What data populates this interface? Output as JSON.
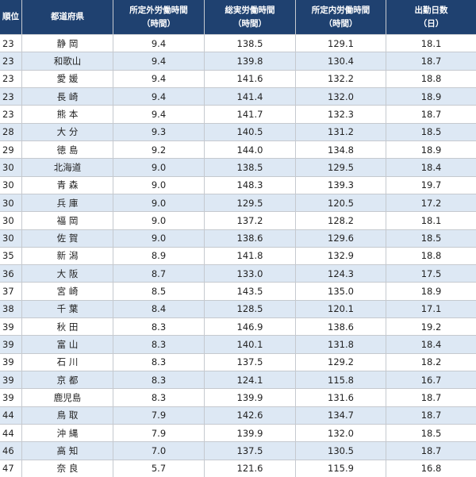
{
  "table": {
    "header": [
      [
        "順位"
      ],
      [
        "都道府県"
      ],
      [
        "所定外労働時間",
        "（時間）"
      ],
      [
        "総実労働時間",
        "（時間）"
      ],
      [
        "所定内労働時間",
        "（時間）"
      ],
      [
        "出勤日数",
        "（日）"
      ]
    ],
    "rows": [
      [
        "23",
        "静 岡",
        "9.4",
        "138.5",
        "129.1",
        "18.1"
      ],
      [
        "23",
        "和歌山",
        "9.4",
        "139.8",
        "130.4",
        "18.7"
      ],
      [
        "23",
        "愛 媛",
        "9.4",
        "141.6",
        "132.2",
        "18.8"
      ],
      [
        "23",
        "長 崎",
        "9.4",
        "141.4",
        "132.0",
        "18.9"
      ],
      [
        "23",
        "熊 本",
        "9.4",
        "141.7",
        "132.3",
        "18.7"
      ],
      [
        "28",
        "大 分",
        "9.3",
        "140.5",
        "131.2",
        "18.5"
      ],
      [
        "29",
        "徳 島",
        "9.2",
        "144.0",
        "134.8",
        "18.9"
      ],
      [
        "30",
        "北海道",
        "9.0",
        "138.5",
        "129.5",
        "18.4"
      ],
      [
        "30",
        "青 森",
        "9.0",
        "148.3",
        "139.3",
        "19.7"
      ],
      [
        "30",
        "兵 庫",
        "9.0",
        "129.5",
        "120.5",
        "17.2"
      ],
      [
        "30",
        "福 岡",
        "9.0",
        "137.2",
        "128.2",
        "18.1"
      ],
      [
        "30",
        "佐 賀",
        "9.0",
        "138.6",
        "129.6",
        "18.5"
      ],
      [
        "35",
        "新 潟",
        "8.9",
        "141.8",
        "132.9",
        "18.8"
      ],
      [
        "36",
        "大 阪",
        "8.7",
        "133.0",
        "124.3",
        "17.5"
      ],
      [
        "37",
        "宮 崎",
        "8.5",
        "143.5",
        "135.0",
        "18.9"
      ],
      [
        "38",
        "千 葉",
        "8.4",
        "128.5",
        "120.1",
        "17.1"
      ],
      [
        "39",
        "秋 田",
        "8.3",
        "146.9",
        "138.6",
        "19.2"
      ],
      [
        "39",
        "富 山",
        "8.3",
        "140.1",
        "131.8",
        "18.4"
      ],
      [
        "39",
        "石 川",
        "8.3",
        "137.5",
        "129.2",
        "18.2"
      ],
      [
        "39",
        "京 都",
        "8.3",
        "124.1",
        "115.8",
        "16.7"
      ],
      [
        "39",
        "鹿児島",
        "8.3",
        "139.9",
        "131.6",
        "18.7"
      ],
      [
        "44",
        "鳥 取",
        "7.9",
        "142.6",
        "134.7",
        "18.7"
      ],
      [
        "44",
        "沖 縄",
        "7.9",
        "139.9",
        "132.0",
        "18.5"
      ],
      [
        "46",
        "高 知",
        "7.0",
        "137.5",
        "130.5",
        "18.7"
      ],
      [
        "47",
        "奈 良",
        "5.7",
        "121.6",
        "115.9",
        "16.8"
      ]
    ]
  }
}
